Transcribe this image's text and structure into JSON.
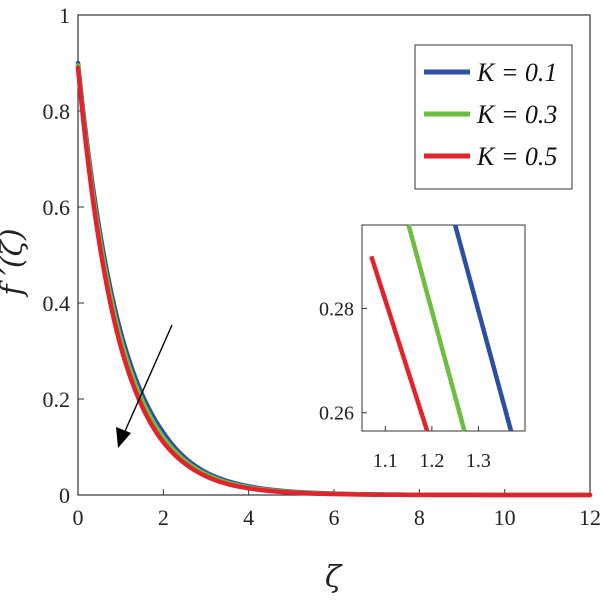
{
  "chart_data": [
    {
      "type": "line",
      "xlabel": "ζ",
      "ylabel": "f ′(ζ)",
      "xlim": [
        0,
        12
      ],
      "ylim": [
        0,
        1
      ],
      "xticks": [
        "0",
        "2",
        "4",
        "6",
        "8",
        "10",
        "12"
      ],
      "yticks": [
        "0",
        "0.2",
        "0.4",
        "0.6",
        "0.8",
        "1"
      ],
      "grid": false,
      "legend_position": "top-right",
      "series": [
        {
          "name": "K = 0.1",
          "color": "#2c4ea3",
          "x": [
            0,
            0.5,
            1,
            1.5,
            2,
            2.5,
            3,
            3.5,
            4,
            5,
            6,
            7,
            8,
            10,
            12
          ],
          "y": [
            0.9,
            0.555,
            0.34,
            0.21,
            0.13,
            0.078,
            0.047,
            0.029,
            0.018,
            0.007,
            0.003,
            0.001,
            0.0005,
            0.0001,
            0
          ]
        },
        {
          "name": "K = 0.3",
          "color": "#6cbf3f",
          "x": [
            0,
            0.5,
            1,
            1.5,
            2,
            2.5,
            3,
            3.5,
            4,
            5,
            6,
            7,
            8,
            10,
            12
          ],
          "y": [
            0.895,
            0.54,
            0.325,
            0.198,
            0.12,
            0.072,
            0.043,
            0.026,
            0.016,
            0.006,
            0.0025,
            0.001,
            0.0004,
            0.0001,
            0
          ]
        },
        {
          "name": "K = 0.5",
          "color": "#e3232c",
          "x": [
            0,
            0.5,
            1,
            1.5,
            2,
            2.5,
            3,
            3.5,
            4,
            5,
            6,
            7,
            8,
            10,
            12
          ],
          "y": [
            0.89,
            0.525,
            0.31,
            0.185,
            0.11,
            0.066,
            0.039,
            0.023,
            0.014,
            0.005,
            0.002,
            0.0008,
            0.0003,
            0.0001,
            0
          ]
        }
      ],
      "annotation": "arrow showing decreasing f′ as K increases"
    },
    {
      "type": "line",
      "role": "inset",
      "xlim": [
        1.05,
        1.4
      ],
      "ylim": [
        0.2565,
        0.296
      ],
      "xticks": [
        "1.1",
        "1.2",
        "1.3"
      ],
      "yticks": [
        "0.26",
        "0.28"
      ],
      "series": [
        {
          "name": "K = 0.1",
          "color": "#2c4ea3",
          "x": [
            1.25,
            1.37
          ],
          "y": [
            0.296,
            0.2565
          ]
        },
        {
          "name": "K = 0.3",
          "color": "#6cbf3f",
          "x": [
            1.15,
            1.27
          ],
          "y": [
            0.296,
            0.2565
          ]
        },
        {
          "name": "K = 0.5",
          "color": "#e3232c",
          "x": [
            1.07,
            1.19
          ],
          "y": [
            0.29,
            0.2565
          ]
        }
      ]
    }
  ]
}
